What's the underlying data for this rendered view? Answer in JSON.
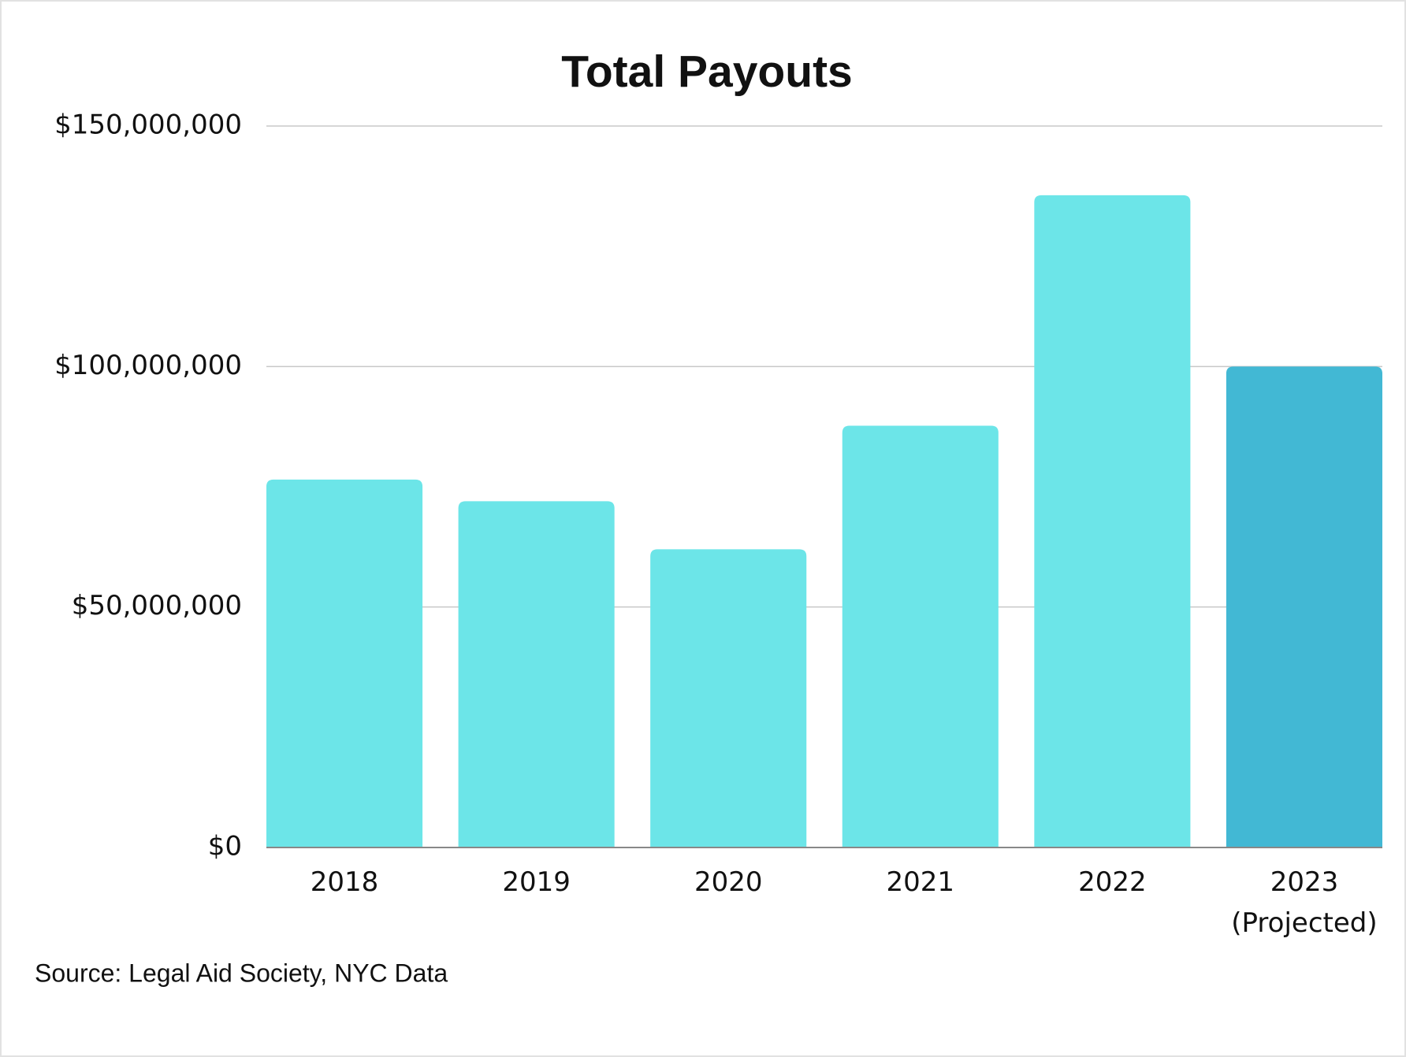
{
  "chart_data": {
    "type": "bar",
    "title": "Total Payouts",
    "categories": [
      "2018",
      "2019",
      "2020",
      "2021",
      "2022",
      "2023\n(Projected)"
    ],
    "values": [
      76500000,
      72000000,
      62000000,
      87700000,
      135600000,
      100000000
    ],
    "colors": [
      "#6ce5e8",
      "#6ce5e8",
      "#6ce5e8",
      "#6ce5e8",
      "#6ce5e8",
      "#42b8d4"
    ],
    "ylim": [
      0,
      150000000
    ],
    "yticks": [
      {
        "value": 0,
        "label": "$0"
      },
      {
        "value": 50000000,
        "label": "$50,000,000"
      },
      {
        "value": 100000000,
        "label": "$100,000,000"
      },
      {
        "value": 150000000,
        "label": "$150,000,000"
      }
    ],
    "grid": true,
    "source": "Source: Legal Aid Society, NYC Data"
  }
}
